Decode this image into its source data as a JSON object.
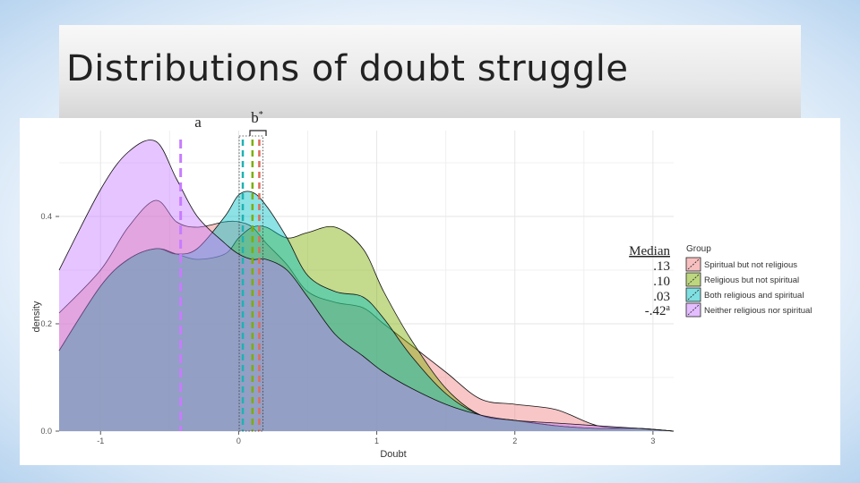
{
  "slide": {
    "title": "Distributions of doubt struggle"
  },
  "annotations": {
    "label_a": "a",
    "label_b": "b",
    "label_b_sup": "*"
  },
  "medians": {
    "header": "Median",
    "values": [
      ".13",
      ".10",
      ".03",
      "-.42"
    ],
    "last_sup": "a"
  },
  "legend": {
    "title": "Group"
  },
  "colors": {
    "spiritual": "#f08080",
    "religious": "#7fb818",
    "both": "#20c2c8",
    "neither": "#c77cff",
    "median_purple": "#c77cff",
    "median_teal": "#20b2b2",
    "median_green": "#7cae00",
    "median_red": "#e06c5c"
  },
  "chart_data": {
    "type": "area",
    "title": "",
    "xlabel": "Doubt",
    "ylabel": "density",
    "xlim": [
      -1.3,
      3.15
    ],
    "ylim": [
      0,
      0.56
    ],
    "xticks": [
      -1,
      0,
      1,
      2,
      3
    ],
    "yticks": [
      0.0,
      0.2,
      0.4
    ],
    "xtick_labels": [
      "-1",
      "0",
      "1",
      "2",
      "3"
    ],
    "ytick_labels": [
      "0.0",
      "0.2",
      "0.4"
    ],
    "grid": true,
    "legend_position": "right",
    "x": [
      -1.3,
      -1.0,
      -0.8,
      -0.6,
      -0.45,
      -0.3,
      -0.1,
      0.0,
      0.1,
      0.2,
      0.35,
      0.5,
      0.7,
      0.9,
      1.05,
      1.25,
      1.5,
      1.75,
      2.0,
      2.3,
      2.6,
      2.9,
      3.15
    ],
    "series": [
      {
        "name": "Spiritual but not religious",
        "color": "#f08080",
        "values": [
          0.22,
          0.3,
          0.38,
          0.43,
          0.39,
          0.38,
          0.39,
          0.39,
          0.38,
          0.35,
          0.31,
          0.26,
          0.24,
          0.23,
          0.2,
          0.16,
          0.11,
          0.06,
          0.05,
          0.04,
          0.01,
          0.005,
          0.0
        ]
      },
      {
        "name": "Religious but not spiritual",
        "color": "#7cae00",
        "values": [
          0.15,
          0.27,
          0.32,
          0.34,
          0.33,
          0.32,
          0.33,
          0.36,
          0.38,
          0.38,
          0.36,
          0.37,
          0.38,
          0.34,
          0.26,
          0.17,
          0.08,
          0.03,
          0.02,
          0.01,
          0.005,
          0.005,
          0.0
        ]
      },
      {
        "name": "Both religious and spiritual",
        "color": "#00bfc4",
        "values": [
          0.15,
          0.27,
          0.32,
          0.34,
          0.33,
          0.34,
          0.4,
          0.44,
          0.445,
          0.42,
          0.36,
          0.29,
          0.26,
          0.25,
          0.21,
          0.14,
          0.07,
          0.03,
          0.02,
          0.01,
          0.005,
          0.005,
          0.0
        ]
      },
      {
        "name": "Neither religious nor spiritual",
        "color": "#c77cff",
        "values": [
          0.3,
          0.45,
          0.52,
          0.54,
          0.47,
          0.4,
          0.35,
          0.33,
          0.32,
          0.32,
          0.3,
          0.25,
          0.18,
          0.14,
          0.11,
          0.08,
          0.05,
          0.03,
          0.02,
          0.015,
          0.01,
          0.005,
          0.0
        ]
      }
    ],
    "medians": [
      {
        "group": "Spiritual but not religious",
        "x": 0.13,
        "color": "#e06c5c"
      },
      {
        "group": "Religious but not spiritual",
        "x": 0.1,
        "color": "#7cae00"
      },
      {
        "group": "Both religious and spiritual",
        "x": 0.03,
        "color": "#20b2b2"
      },
      {
        "group": "Neither religious nor spiritual",
        "x": -0.42,
        "color": "#c77cff"
      }
    ],
    "legend_entries": [
      "Spiritual but not religious",
      "Religious but not spiritual",
      "Both religious and spiritual",
      "Neither religious nor spiritual"
    ]
  }
}
